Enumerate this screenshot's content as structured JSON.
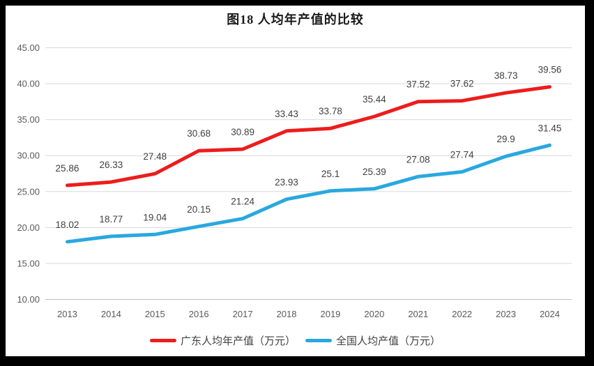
{
  "title": "图18 人均年产值的比较",
  "colors": {
    "guangdong": "#ed1c1c",
    "national": "#29a8e0",
    "gridline": "#d9d9d9",
    "axis_line": "#bfbfbf",
    "tick_text": "#595959",
    "data_label_text": "#404040",
    "frame": "#000000",
    "background": "#ffffff"
  },
  "legend": {
    "items": [
      {
        "key": "guangdong",
        "label": "广东人均年产值（万元）",
        "color": "#ed1c1c"
      },
      {
        "key": "national",
        "label": "全国人均产值（万元）",
        "color": "#29a8e0"
      }
    ]
  },
  "chart_data": {
    "type": "line",
    "title": "图18 人均年产值的比较",
    "categories": [
      "2013",
      "2014",
      "2015",
      "2016",
      "2017",
      "2018",
      "2019",
      "2020",
      "2021",
      "2022",
      "2023",
      "2024"
    ],
    "series": [
      {
        "key": "guangdong",
        "name": "广东人均年产值（万元）",
        "color": "#ed1c1c",
        "values": [
          25.86,
          26.33,
          27.48,
          30.68,
          30.89,
          33.43,
          33.78,
          35.44,
          37.52,
          37.62,
          38.73,
          39.56
        ]
      },
      {
        "key": "national",
        "name": "全国人均产值（万元）",
        "color": "#29a8e0",
        "values": [
          18.02,
          18.77,
          19.04,
          20.15,
          21.24,
          23.93,
          25.1,
          25.39,
          27.08,
          27.74,
          29.9,
          31.45
        ]
      }
    ],
    "xlabel": "",
    "ylabel": "",
    "ylim": [
      10,
      45
    ],
    "ytick_step": 5,
    "ytick_decimals": 2,
    "grid": "horizontal",
    "data_labels": true,
    "legend_position": "bottom"
  }
}
